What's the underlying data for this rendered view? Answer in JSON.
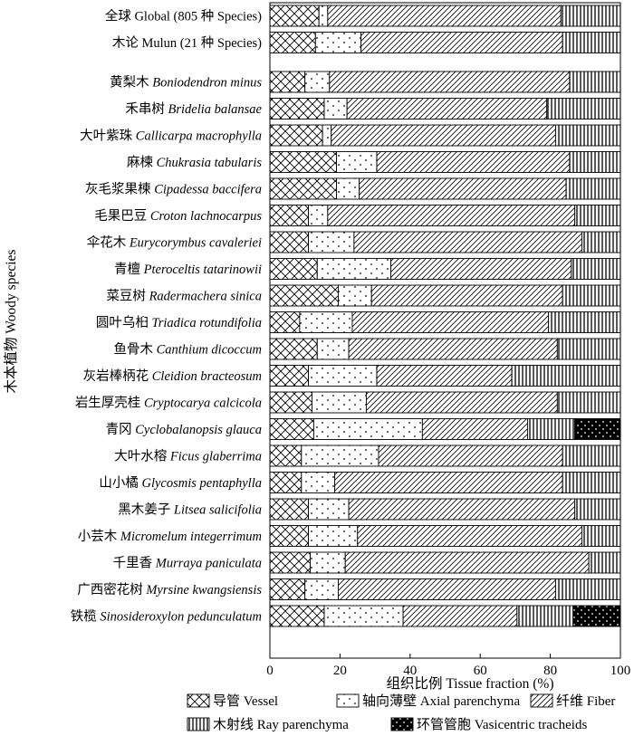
{
  "chart_data": {
    "type": "bar",
    "orientation": "horizontal",
    "stacked": true,
    "xlabel": "组织比例 Tissue fraction (%)",
    "ylabel": "木本植物 Woody species",
    "xlim": [
      0,
      100
    ],
    "xticks": [
      "0",
      "20",
      "40",
      "60",
      "80",
      "100"
    ],
    "grid": false,
    "legend_position": "bottom",
    "series_names": [
      "导管 Vessel",
      "轴向薄壁 Axial parenchyma",
      "纤维 Fiber",
      "木射线 Ray parenchyma",
      "环管管胞 Vasicentric tracheids"
    ],
    "groups": [
      [
        {
          "zh": "全球",
          "sp": "Global (805 种 Species)",
          "italic": false,
          "values": [
            14,
            2.5,
            66.5,
            17,
            0
          ]
        },
        {
          "zh": "木论",
          "sp": "Mulun (21 种 Species)",
          "italic": false,
          "values": [
            13,
            13,
            57.5,
            16.5,
            0
          ]
        }
      ],
      [
        {
          "zh": "黄梨木",
          "sp": "Boniodendron minus",
          "italic": true,
          "values": [
            10,
            7,
            68.5,
            14.5,
            0
          ]
        },
        {
          "zh": "禾串树",
          "sp": "Bridelia balansae",
          "italic": true,
          "values": [
            15.5,
            6.5,
            57,
            21,
            0
          ]
        },
        {
          "zh": "大叶紫珠",
          "sp": "Callicarpa macrophylla",
          "italic": true,
          "values": [
            15,
            2.5,
            64,
            18.5,
            0
          ]
        },
        {
          "zh": "麻楝",
          "sp": "Chukrasia tabularis",
          "italic": true,
          "values": [
            19,
            11.5,
            55,
            14.5,
            0
          ]
        },
        {
          "zh": "灰毛浆果楝",
          "sp": "Cipadessa baccifera",
          "italic": true,
          "values": [
            19,
            6.5,
            59,
            15.5,
            0
          ]
        },
        {
          "zh": "毛果巴豆",
          "sp": "Croton lachnocarpus",
          "italic": true,
          "values": [
            11,
            5.5,
            70.5,
            13,
            0
          ]
        },
        {
          "zh": "伞花木",
          "sp": "Eurycorymbus cavaleriei",
          "italic": true,
          "values": [
            11,
            13,
            65,
            11,
            0
          ]
        },
        {
          "zh": "青檀",
          "sp": "Pteroceltis tatarinowii",
          "italic": true,
          "values": [
            13.5,
            21,
            51.5,
            14,
            0
          ]
        },
        {
          "zh": "菜豆树",
          "sp": "Radermachera sinica",
          "italic": true,
          "values": [
            19.5,
            9.5,
            54.5,
            16.5,
            0
          ]
        },
        {
          "zh": "圆叶乌桕",
          "sp": "Triadica rotundifolia",
          "italic": true,
          "values": [
            8.5,
            15,
            56,
            20.5,
            0
          ]
        },
        {
          "zh": "鱼骨木",
          "sp": "Canthium dicoccum",
          "italic": true,
          "values": [
            13.5,
            9,
            59.5,
            18,
            0
          ]
        },
        {
          "zh": "灰岩棒柄花",
          "sp": "Cleidion bracteosum",
          "italic": true,
          "values": [
            11,
            19.5,
            38.5,
            31,
            0
          ]
        },
        {
          "zh": "岩生厚壳桂",
          "sp": "Cryptocarya calcicola",
          "italic": true,
          "values": [
            12,
            15.5,
            54.5,
            18,
            0
          ]
        },
        {
          "zh": "青冈",
          "sp": "Cyclobalanopsis glauca",
          "italic": true,
          "values": [
            12.5,
            31,
            30,
            13.5,
            13
          ]
        },
        {
          "zh": "大叶水榕",
          "sp": "Ficus glaberrima",
          "italic": true,
          "values": [
            9,
            22,
            52.5,
            16.5,
            0
          ]
        },
        {
          "zh": "山小橘",
          "sp": "Glycosmis pentaphylla",
          "italic": true,
          "values": [
            9,
            9.5,
            65,
            16.5,
            0
          ]
        },
        {
          "zh": "黑木姜子",
          "sp": "Litsea salicifolia",
          "italic": true,
          "values": [
            11,
            11.5,
            64.5,
            13,
            0
          ]
        },
        {
          "zh": "小芸木",
          "sp": "Micromelum integerrimum",
          "italic": true,
          "values": [
            11,
            14,
            64,
            11,
            0
          ]
        },
        {
          "zh": "千里香",
          "sp": "Murraya paniculata",
          "italic": true,
          "values": [
            11.5,
            10,
            69.5,
            9,
            0
          ]
        },
        {
          "zh": "广西密花树",
          "sp": "Myrsine kwangsiensis",
          "italic": true,
          "values": [
            10,
            9.5,
            62,
            18.5,
            0
          ]
        },
        {
          "zh": "铁榄",
          "sp": "Sinosideroxylon pedunculatum",
          "italic": true,
          "values": [
            15.5,
            22.5,
            32.5,
            16,
            13.5
          ]
        }
      ]
    ]
  }
}
